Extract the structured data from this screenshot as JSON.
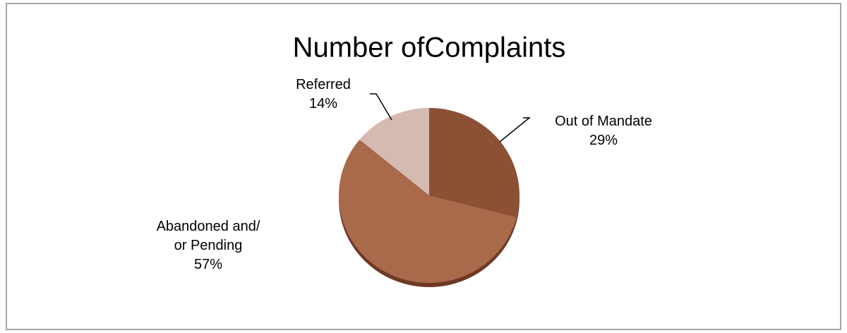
{
  "chart_data": {
    "type": "pie",
    "title": "Number ofComplaints",
    "categories": [
      "Out of Mandate",
      "Abandoned and/ or Pending",
      "Referred"
    ],
    "values": [
      29,
      57,
      14
    ],
    "value_labels": [
      "29%",
      "57%",
      "14%"
    ],
    "colors": [
      "#8c5035",
      "#a9694b",
      "#d5bab2"
    ]
  }
}
